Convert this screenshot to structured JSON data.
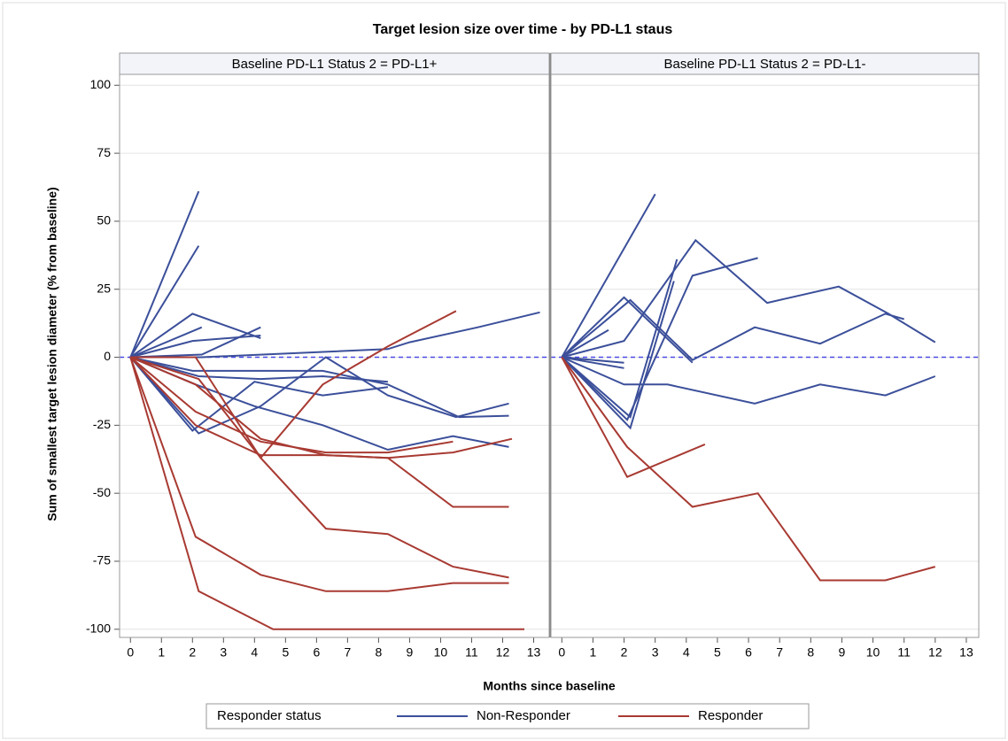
{
  "figure": {
    "title": "Target lesion size over time - by PD-L1 staus",
    "xlabel": "Months since baseline",
    "ylabel": "Sum of smallest target lesion diameter (% from baseline)",
    "legend_title": "Responder status"
  },
  "chart_data": [
    {
      "type": "line",
      "title": "Baseline PD-L1 Status 2 = PD-L1+",
      "xlim": [
        -0.35,
        13.5
      ],
      "ylim": [
        -103,
        104
      ],
      "xticks": [
        0,
        1,
        2,
        3,
        4,
        5,
        6,
        7,
        8,
        9,
        10,
        11,
        12,
        13
      ],
      "yticks": [
        -100,
        -75,
        -50,
        -25,
        0,
        25,
        50,
        75,
        100
      ],
      "grid": true,
      "series": [
        {
          "name": "Non-Responder",
          "color": "#3b4f9a",
          "x": [
            0,
            2.2
          ],
          "values": [
            0,
            61
          ]
        },
        {
          "name": "Non-Responder",
          "color": "#3b4f9a",
          "x": [
            0,
            2.2
          ],
          "values": [
            0,
            41
          ]
        },
        {
          "name": "Non-Responder",
          "color": "#3b4f9a",
          "x": [
            0,
            2.0,
            4.2
          ],
          "values": [
            0,
            16,
            7
          ]
        },
        {
          "name": "Non-Responder",
          "color": "#3b4f9a",
          "x": [
            0,
            2.3
          ],
          "values": [
            0,
            11
          ]
        },
        {
          "name": "Non-Responder",
          "color": "#3b4f9a",
          "x": [
            0,
            2.0,
            4.2
          ],
          "values": [
            0,
            6,
            8
          ]
        },
        {
          "name": "Non-Responder",
          "color": "#3b4f9a",
          "x": [
            0,
            2.3,
            4.2
          ],
          "values": [
            0,
            1,
            11
          ]
        },
        {
          "name": "Non-Responder",
          "color": "#3b4f9a",
          "x": [
            0,
            2.3,
            8.3,
            9,
            11.2,
            13.2
          ],
          "values": [
            0,
            0,
            3,
            5.5,
            11,
            16.5
          ]
        },
        {
          "name": "Non-Responder",
          "color": "#3b4f9a",
          "x": [
            0,
            2,
            4.2,
            6.2,
            8.3,
            10.6,
            12.2
          ],
          "values": [
            0,
            -5,
            -5,
            -5,
            -10,
            -22,
            -21.5
          ]
        },
        {
          "name": "Non-Responder",
          "color": "#3b4f9a",
          "x": [
            0,
            2,
            4,
            6.2,
            8.3
          ],
          "values": [
            0,
            -27,
            -9,
            -14,
            -11
          ]
        },
        {
          "name": "Non-Responder",
          "color": "#3b4f9a",
          "x": [
            0,
            2.2,
            4.2,
            6.3,
            8.3,
            10.5,
            12.2
          ],
          "values": [
            0,
            -28,
            -18,
            0,
            -14,
            -22,
            -17
          ]
        },
        {
          "name": "Non-Responder",
          "color": "#3b4f9a",
          "x": [
            0,
            2.1,
            4,
            6.2,
            8.3,
            10.4,
            12.2
          ],
          "values": [
            0,
            -10,
            -18,
            -25,
            -34,
            -29,
            -33
          ]
        },
        {
          "name": "Non-Responder",
          "color": "#3b4f9a",
          "x": [
            0,
            2.2,
            4.2,
            6.2,
            8.3
          ],
          "values": [
            0,
            -7,
            -8,
            -7,
            -9
          ]
        },
        {
          "name": "Responder",
          "color": "#a83a32",
          "x": [
            0,
            2.2,
            4.2,
            6.2,
            8.3,
            10.5
          ],
          "values": [
            0,
            -8,
            -37,
            -10,
            4,
            17
          ]
        },
        {
          "name": "Responder",
          "color": "#a83a32",
          "x": [
            0,
            2.1,
            4.2,
            6.3,
            8.3,
            10.4
          ],
          "values": [
            0,
            -20,
            -31,
            -35,
            -35,
            -31
          ]
        },
        {
          "name": "Responder",
          "color": "#a83a32",
          "x": [
            0,
            2.1,
            4.2,
            6.3,
            8.3,
            10.4,
            12.3
          ],
          "values": [
            0,
            -25,
            -36,
            -36,
            -37,
            -35,
            -30
          ]
        },
        {
          "name": "Responder",
          "color": "#a83a32",
          "x": [
            0,
            2.1,
            4.2,
            6.3,
            8.3,
            10.4,
            12.2
          ],
          "values": [
            0,
            0,
            -37,
            -63,
            -65,
            -77,
            -81
          ]
        },
        {
          "name": "Responder",
          "color": "#a83a32",
          "x": [
            0,
            2.1,
            4.2,
            6.3,
            8.3,
            10.4,
            12.2
          ],
          "values": [
            0,
            -66,
            -80,
            -86,
            -86,
            -83,
            -83
          ]
        },
        {
          "name": "Responder",
          "color": "#a83a32",
          "x": [
            0,
            2.2,
            4.6,
            6.3,
            8.3,
            10.4,
            12.7
          ],
          "values": [
            0,
            -86,
            -100,
            -100,
            -100,
            -100,
            -100
          ]
        },
        {
          "name": "Responder",
          "color": "#a83a32",
          "x": [
            0,
            2.1,
            4.2,
            6.3,
            8.3,
            10.4,
            12.2
          ],
          "values": [
            0,
            -10,
            -30,
            -36,
            -37,
            -55,
            -55
          ]
        }
      ]
    },
    {
      "type": "line",
      "title": "Baseline PD-L1 Status 2 = PD-L1-",
      "xlim": [
        -0.35,
        13.4
      ],
      "ylim": [
        -103,
        104
      ],
      "xticks": [
        0,
        1,
        2,
        3,
        4,
        5,
        6,
        7,
        8,
        9,
        10,
        11,
        12,
        13
      ],
      "yticks": [
        -100,
        -75,
        -50,
        -25,
        0,
        25,
        50,
        75,
        100
      ],
      "grid": true,
      "series": [
        {
          "name": "Non-Responder",
          "color": "#3b4f9a",
          "x": [
            0,
            3.0
          ],
          "values": [
            0,
            60
          ]
        },
        {
          "name": "Non-Responder",
          "color": "#3b4f9a",
          "x": [
            0,
            2.2,
            4.2,
            6.2,
            8.3,
            10.4,
            11
          ],
          "values": [
            0,
            21,
            -1,
            11,
            5,
            16,
            14
          ]
        },
        {
          "name": "Non-Responder",
          "color": "#3b4f9a",
          "x": [
            0,
            2.2,
            3.7
          ],
          "values": [
            0,
            -22,
            36
          ]
        },
        {
          "name": "Non-Responder",
          "color": "#3b4f9a",
          "x": [
            0,
            2.0,
            4.3,
            6.6,
            8.9,
            10.5,
            12
          ],
          "values": [
            0,
            6,
            43,
            20,
            26,
            16,
            5.5
          ]
        },
        {
          "name": "Non-Responder",
          "color": "#3b4f9a",
          "x": [
            0,
            2.1,
            4.2,
            6.3
          ],
          "values": [
            0,
            -23,
            30,
            36.5
          ]
        },
        {
          "name": "Non-Responder",
          "color": "#3b4f9a",
          "x": [
            0,
            2.0,
            3.4,
            6.2,
            8.3,
            10.4,
            12
          ],
          "values": [
            0,
            -10,
            -10,
            -17,
            -10,
            -14,
            -7
          ]
        },
        {
          "name": "Non-Responder",
          "color": "#3b4f9a",
          "x": [
            0,
            1.5
          ],
          "values": [
            0,
            10
          ]
        },
        {
          "name": "Non-Responder",
          "color": "#3b4f9a",
          "x": [
            0,
            2.0,
            4.2
          ],
          "values": [
            0,
            22,
            -2
          ]
        },
        {
          "name": "Non-Responder",
          "color": "#3b4f9a",
          "x": [
            0,
            2.0
          ],
          "values": [
            0,
            -2
          ]
        },
        {
          "name": "Non-Responder",
          "color": "#3b4f9a",
          "x": [
            0,
            2.0
          ],
          "values": [
            0,
            -4
          ]
        },
        {
          "name": "Non-Responder",
          "color": "#3b4f9a",
          "x": [
            0,
            2.2,
            3.6
          ],
          "values": [
            0,
            -26,
            28
          ]
        },
        {
          "name": "Responder",
          "color": "#a83a32",
          "x": [
            0,
            2.1,
            4.2,
            6.3,
            8.3,
            10.4,
            12
          ],
          "values": [
            0,
            -33,
            -55,
            -50,
            -82,
            -82,
            -77
          ]
        },
        {
          "name": "Responder",
          "color": "#a83a32",
          "x": [
            0,
            2.1,
            4.6
          ],
          "values": [
            0,
            -44,
            -32
          ]
        }
      ]
    }
  ]
}
